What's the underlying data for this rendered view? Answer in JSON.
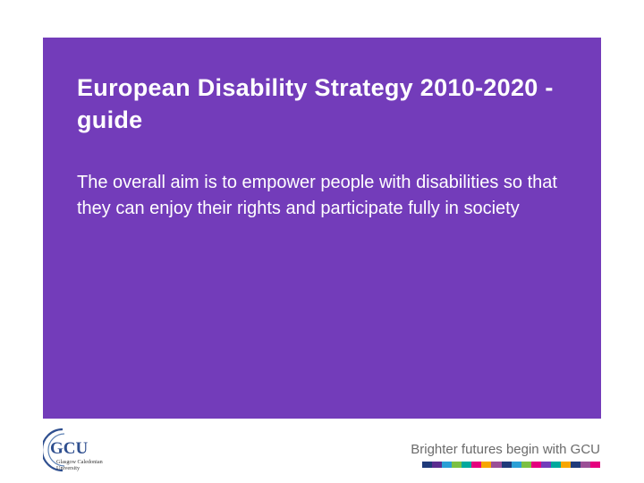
{
  "slide": {
    "title": "European Disability Strategy 2010-2020 - guide",
    "body": "The overall aim is to empower people with disabilities so that they can enjoy their rights and participate fully in society"
  },
  "footer": {
    "logo": {
      "icon": "gcu-logo-icon",
      "text": "GCU",
      "line1": "Glasgow Caledonian",
      "line2": "University",
      "color": "#2f4f8f"
    },
    "tagline": "Brighter futures begin with GCU",
    "stripe_colors": [
      "#1f3a7a",
      "#5b2d90",
      "#2a9fd6",
      "#7bc043",
      "#00a99d",
      "#e5007e",
      "#f7a600",
      "#9b4f96",
      "#1f3a7a",
      "#2a9fd6",
      "#7bc043",
      "#e5007e",
      "#733cba",
      "#00a99d",
      "#f7a600",
      "#1f3a7a",
      "#9b4f96",
      "#e5007e"
    ]
  },
  "colors": {
    "panel": "#733cba",
    "text": "#ffffff"
  }
}
